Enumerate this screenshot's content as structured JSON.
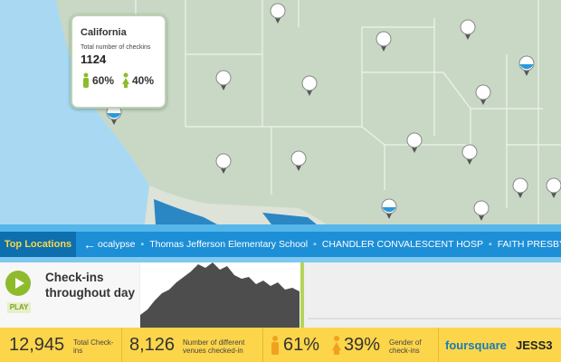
{
  "popup": {
    "title": "California",
    "label": "Total number of checkins",
    "count": "1124",
    "male": "60%",
    "female": "40%"
  },
  "ticker": {
    "title": "Top Locations",
    "items": [
      "ocalypse",
      "Thomas Jefferson Elementary School",
      "CHANDLER CONVALESCENT HOSP",
      "FAITH PRESBY"
    ]
  },
  "checkins": {
    "play": "PLAY",
    "title": "Check-ins throughout day",
    "activity": [
      14,
      20,
      30,
      38,
      42,
      50,
      56,
      62,
      70,
      66,
      72,
      64,
      68,
      58,
      54,
      56,
      48,
      52,
      46,
      50,
      42,
      44,
      40
    ]
  },
  "stats": {
    "total": {
      "value": "12,945",
      "label": "Total Check-ins"
    },
    "venues": {
      "value": "8,126",
      "label": "Number of different venues checked-in"
    },
    "gender": {
      "male": "61%",
      "female": "39%",
      "label": "Gender of check-ins"
    }
  },
  "brands": [
    "foursquare",
    "JESS3"
  ]
}
